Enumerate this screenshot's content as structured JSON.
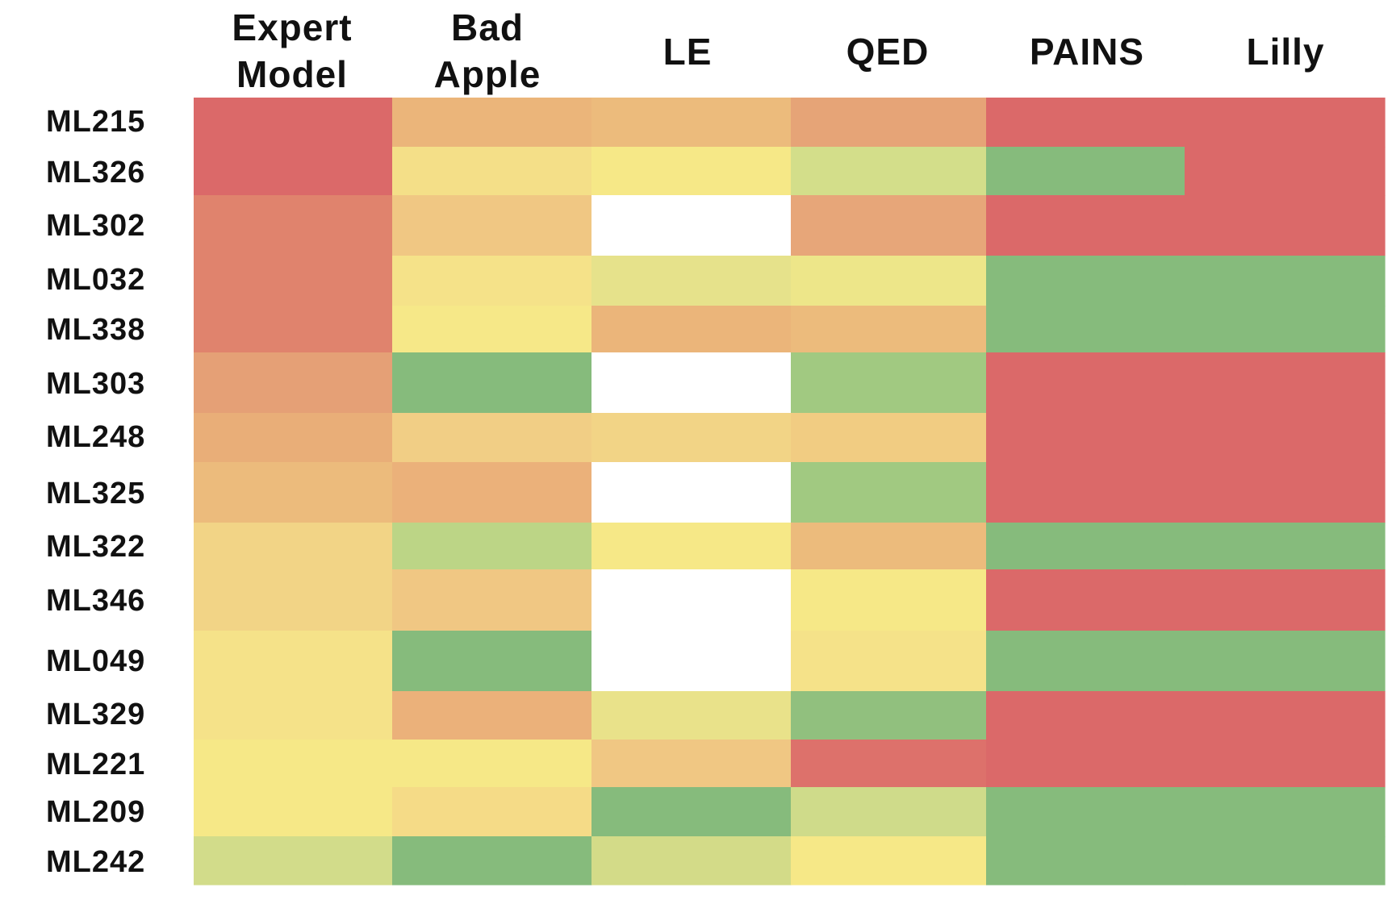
{
  "chart_data": {
    "type": "heatmap",
    "columns": [
      {
        "lines": [
          "Expert",
          "Model"
        ]
      },
      {
        "lines": [
          "Bad",
          "Apple"
        ]
      },
      {
        "lines": [
          "LE"
        ]
      },
      {
        "lines": [
          "QED"
        ]
      },
      {
        "lines": [
          "PAINS"
        ]
      },
      {
        "lines": [
          "Lilly"
        ]
      }
    ],
    "rows": [
      "ML215",
      "ML326",
      "ML302",
      "ML032",
      "ML338",
      "ML303",
      "ML248",
      "ML325",
      "ML322",
      "ML346",
      "ML049",
      "ML329",
      "ML221",
      "ML209",
      "ML242"
    ],
    "cell_colors": [
      [
        "#db6969",
        "#ebb57a",
        "#ecbb7c",
        "#e6a477",
        "#db6969",
        "#db6969"
      ],
      [
        "#db6969",
        "#f4df88",
        "#f6e887",
        "#d3de8a",
        "#86bb7c",
        "#db6969"
      ],
      [
        "#e0836d",
        "#f0c783",
        "#ffffff",
        "#e7a679",
        "#db6969",
        "#db6969"
      ],
      [
        "#e0836d",
        "#f5e289",
        "#e6e28b",
        "#ede689",
        "#86bb7c",
        "#86bb7c"
      ],
      [
        "#e0836d",
        "#f6e888",
        "#ebb57a",
        "#ecbb7c",
        "#86bb7c",
        "#86bb7c"
      ],
      [
        "#e5a076",
        "#86bb7c",
        "#ffffff",
        "#a1c981",
        "#db6969",
        "#db6969"
      ],
      [
        "#e9ae78",
        "#f1ce85",
        "#f2d486",
        "#f1cc82",
        "#db6969",
        "#db6969"
      ],
      [
        "#ecbb7c",
        "#ebb17a",
        "#ffffff",
        "#a1c981",
        "#db6969",
        "#db6969"
      ],
      [
        "#f2d486",
        "#bcd586",
        "#f6e887",
        "#ecbb7c",
        "#86bb7c",
        "#86bb7c"
      ],
      [
        "#f2d486",
        "#f0c783",
        "#ffffff",
        "#f6e887",
        "#db6969",
        "#db6969"
      ],
      [
        "#f5e289",
        "#86bb7c",
        "#ffffff",
        "#f5e289",
        "#86bb7c",
        "#86bb7c"
      ],
      [
        "#f5e289",
        "#ebb17a",
        "#e9e28a",
        "#91c07e",
        "#db6969",
        "#db6969"
      ],
      [
        "#f6e887",
        "#f6e887",
        "#f0c783",
        "#dd716b",
        "#db6969",
        "#db6969"
      ],
      [
        "#f6e887",
        "#f5db87",
        "#86bb7c",
        "#cfdb8a",
        "#86bb7c",
        "#86bb7c"
      ],
      [
        "#d2dc8a",
        "#86bb7c",
        "#d3db88",
        "#f6e887",
        "#86bb7c",
        "#86bb7c"
      ]
    ],
    "colors": {
      "red": "#db6969",
      "orange": "#e6a477",
      "yellow": "#f6e887",
      "green": "#86bb7c",
      "missing": "#ffffff"
    },
    "legend": "none",
    "grid": false
  }
}
